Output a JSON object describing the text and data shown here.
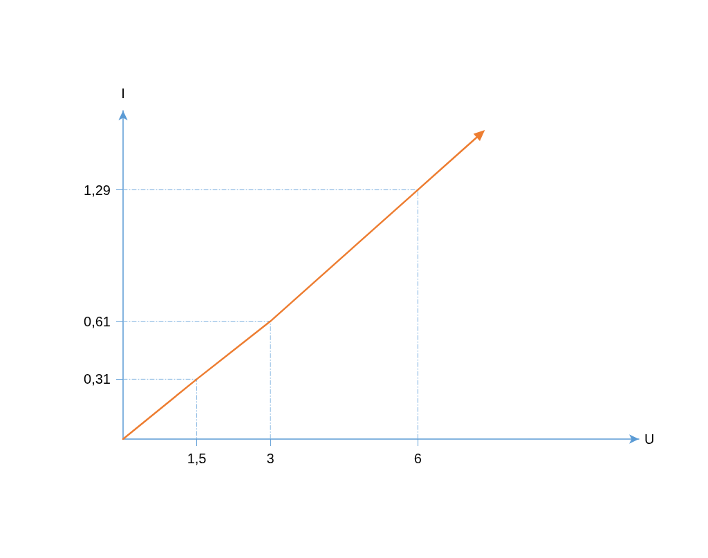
{
  "chart_data": {
    "type": "line",
    "xlabel": "U",
    "ylabel": "I",
    "x": [
      0,
      1.5,
      3,
      6
    ],
    "series": [
      {
        "color": "#ed7d31",
        "values": [
          0,
          0.31,
          0.61,
          1.29
        ]
      },
      {
        "color": "#7fb2e0",
        "line_style": "dashed",
        "x": [
          0,
          1.5,
          1.5
        ],
        "values": [
          0.31,
          0.31,
          0
        ]
      },
      {
        "color": "#7fb2e0",
        "line_style": "dashed",
        "x": [
          0,
          3,
          3
        ],
        "values": [
          0.61,
          0.61,
          0
        ]
      },
      {
        "color": "#7fb2e0",
        "line_style": "dashed",
        "x": [
          0,
          6,
          6
        ],
        "values": [
          1.29,
          1.29,
          0
        ]
      }
    ],
    "xlim": [
      0,
      10.5
    ],
    "ylim": [
      0,
      1.7
    ],
    "xticks": [
      {
        "value": 1.5,
        "label": "1,5"
      },
      3,
      6
    ],
    "yticks": [
      {
        "value": 0.31,
        "label": "0,31"
      },
      {
        "value": 0.61,
        "label": "0,61"
      },
      {
        "value": 1.29,
        "label": "1,29"
      }
    ],
    "grid": false,
    "marker": "none",
    "line_style": "solid"
  }
}
